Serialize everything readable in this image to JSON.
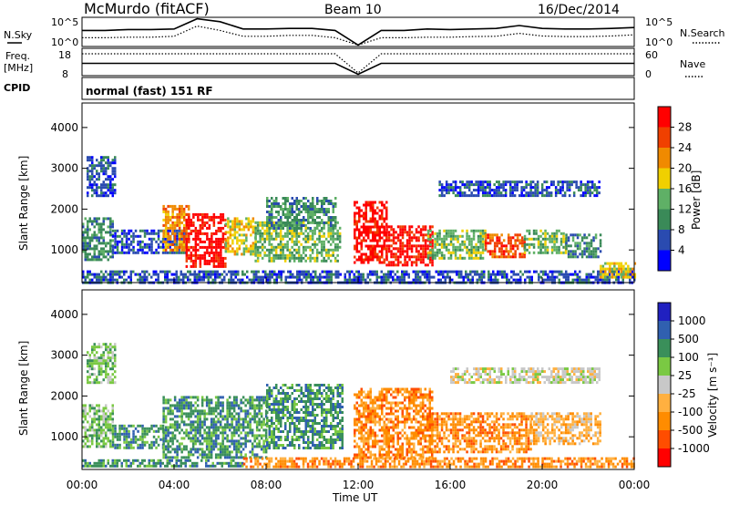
{
  "header": {
    "station": "McMurdo (fitACF)",
    "beam": "Beam 10",
    "date": "16/Dec/2014"
  },
  "noise_panel": {
    "left_label": "N.Sky",
    "right_label": "N.Search",
    "left_ticks": [
      "10^5",
      "10^0"
    ],
    "right_ticks": [
      "10^5",
      "10^0"
    ]
  },
  "freq_panel": {
    "left_label_1": "Freq.",
    "left_label_2": "[MHz]",
    "right_label": "Nave",
    "left_ticks": [
      "18",
      "8"
    ],
    "right_ticks": [
      "60",
      "0"
    ]
  },
  "cpid": {
    "label": "CPID",
    "value": "normal (fast) 151 RF"
  },
  "colors": {
    "power": [
      "#0000ff",
      "#2a4bb0",
      "#3a8a58",
      "#5fb066",
      "#f0d000",
      "#f08a00",
      "#f04000",
      "#ff0000"
    ],
    "velocity": [
      "#ff0000",
      "#ff4d00",
      "#ff8c00",
      "#ffb040",
      "#c8c8c8",
      "#7ac943",
      "#3a8f5a",
      "#3060b0",
      "#2020c0"
    ]
  },
  "chart_data": [
    {
      "type": "heatmap",
      "name": "power",
      "ylabel": "Slant Range [km]",
      "yticks": [
        "1000",
        "2000",
        "3000",
        "4000"
      ],
      "ylim": [
        200,
        4600
      ],
      "xlim": [
        "00:00",
        "24:00"
      ],
      "colorbar_label": "Power [dB]",
      "colorbar_ticks": [
        "4",
        "8",
        "12",
        "16",
        "20",
        "24",
        "28"
      ],
      "clim": [
        0,
        32
      ],
      "regions": [
        {
          "t0": 0.0,
          "t1": 1.3,
          "r0": 750,
          "r1": 1800,
          "level": 2
        },
        {
          "t0": 0.2,
          "t1": 1.4,
          "r0": 2300,
          "r1": 3300,
          "level": 1
        },
        {
          "t0": 1.3,
          "t1": 4.5,
          "r0": 900,
          "r1": 1500,
          "level": 1
        },
        {
          "t0": 3.5,
          "t1": 4.6,
          "r0": 1000,
          "r1": 2100,
          "level": 5
        },
        {
          "t0": 4.5,
          "t1": 6.2,
          "r0": 600,
          "r1": 1900,
          "level": 7
        },
        {
          "t0": 6.2,
          "t1": 7.5,
          "r0": 900,
          "r1": 1800,
          "level": 4
        },
        {
          "t0": 7.5,
          "t1": 11.2,
          "r0": 700,
          "r1": 1700,
          "level": 3
        },
        {
          "t0": 8.0,
          "t1": 11.0,
          "r0": 1500,
          "r1": 2300,
          "level": 2
        },
        {
          "t0": 11.8,
          "t1": 13.2,
          "r0": 700,
          "r1": 2200,
          "level": 7
        },
        {
          "t0": 13.2,
          "t1": 15.2,
          "r0": 650,
          "r1": 1600,
          "level": 7
        },
        {
          "t0": 15.0,
          "t1": 17.5,
          "r0": 800,
          "r1": 1500,
          "level": 3
        },
        {
          "t0": 17.5,
          "t1": 19.2,
          "r0": 800,
          "r1": 1400,
          "level": 6
        },
        {
          "t0": 19.2,
          "t1": 21.0,
          "r0": 900,
          "r1": 1500,
          "level": 3
        },
        {
          "t0": 21.0,
          "t1": 22.5,
          "r0": 800,
          "r1": 1400,
          "level": 2
        },
        {
          "t0": 15.5,
          "t1": 22.5,
          "r0": 2300,
          "r1": 2700,
          "level": 1
        },
        {
          "t0": 0.0,
          "t1": 24.0,
          "r0": 200,
          "r1": 500,
          "level": 1
        },
        {
          "t0": 22.5,
          "t1": 24.0,
          "r0": 300,
          "r1": 700,
          "level": 4
        }
      ]
    },
    {
      "type": "heatmap",
      "name": "velocity",
      "ylabel": "Slant Range [km]",
      "yticks": [
        "1000",
        "2000",
        "3000",
        "4000"
      ],
      "ylim": [
        200,
        4600
      ],
      "xlim": [
        "00:00",
        "24:00"
      ],
      "xlabel": "Time UT",
      "xticks": [
        "00:00",
        "04:00",
        "08:00",
        "12:00",
        "16:00",
        "20:00",
        "00:00"
      ],
      "colorbar_label": "Velocity [m s⁻¹]",
      "colorbar_ticks": [
        "1000",
        "500",
        "100",
        "25",
        "-25",
        "-100",
        "-500",
        "-1000"
      ],
      "regions": [
        {
          "t0": 0.0,
          "t1": 1.3,
          "r0": 750,
          "r1": 1800,
          "level": 5
        },
        {
          "t0": 0.2,
          "t1": 1.4,
          "r0": 2300,
          "r1": 3300,
          "level": 5
        },
        {
          "t0": 1.3,
          "t1": 3.5,
          "r0": 700,
          "r1": 1300,
          "level": 6
        },
        {
          "t0": 3.5,
          "t1": 8.0,
          "r0": 500,
          "r1": 2000,
          "level": 6
        },
        {
          "t0": 8.0,
          "t1": 11.3,
          "r0": 700,
          "r1": 2300,
          "level": 6
        },
        {
          "t0": 11.8,
          "t1": 15.2,
          "r0": 500,
          "r1": 2200,
          "level": 2
        },
        {
          "t0": 15.2,
          "t1": 19.5,
          "r0": 600,
          "r1": 1600,
          "level": 2
        },
        {
          "t0": 19.5,
          "t1": 22.5,
          "r0": 800,
          "r1": 1600,
          "level": 3
        },
        {
          "t0": 16.0,
          "t1": 22.5,
          "r0": 2300,
          "r1": 2700,
          "level": 4
        },
        {
          "t0": 0.0,
          "t1": 7.0,
          "r0": 250,
          "r1": 450,
          "level": 6
        },
        {
          "t0": 7.0,
          "t1": 24.0,
          "r0": 250,
          "r1": 500,
          "level": 2
        }
      ]
    }
  ],
  "timeseries": {
    "noise_sky": [
      0.55,
      0.55,
      0.58,
      0.58,
      0.6,
      0.95,
      0.85,
      0.6,
      0.6,
      0.62,
      0.62,
      0.55,
      0.05,
      0.55,
      0.55,
      0.6,
      0.58,
      0.6,
      0.62,
      0.72,
      0.62,
      0.6,
      0.6,
      0.62,
      0.65
    ],
    "noise_search": [
      0.3,
      0.3,
      0.32,
      0.32,
      0.35,
      0.7,
      0.55,
      0.35,
      0.35,
      0.38,
      0.38,
      0.3,
      0.05,
      0.3,
      0.3,
      0.32,
      0.32,
      0.34,
      0.35,
      0.45,
      0.36,
      0.34,
      0.34,
      0.36,
      0.4
    ],
    "freq": [
      0.45,
      0.45,
      0.45,
      0.45,
      0.45,
      0.45,
      0.45,
      0.45,
      0.45,
      0.45,
      0.45,
      0.45,
      0.05,
      0.45,
      0.45,
      0.45,
      0.45,
      0.45,
      0.45,
      0.45,
      0.45,
      0.45,
      0.45,
      0.45,
      0.45
    ],
    "nave": [
      0.8,
      0.8,
      0.8,
      0.8,
      0.8,
      0.8,
      0.8,
      0.8,
      0.8,
      0.8,
      0.8,
      0.8,
      0.1,
      0.8,
      0.8,
      0.8,
      0.8,
      0.8,
      0.8,
      0.8,
      0.8,
      0.8,
      0.8,
      0.8,
      0.8
    ]
  }
}
